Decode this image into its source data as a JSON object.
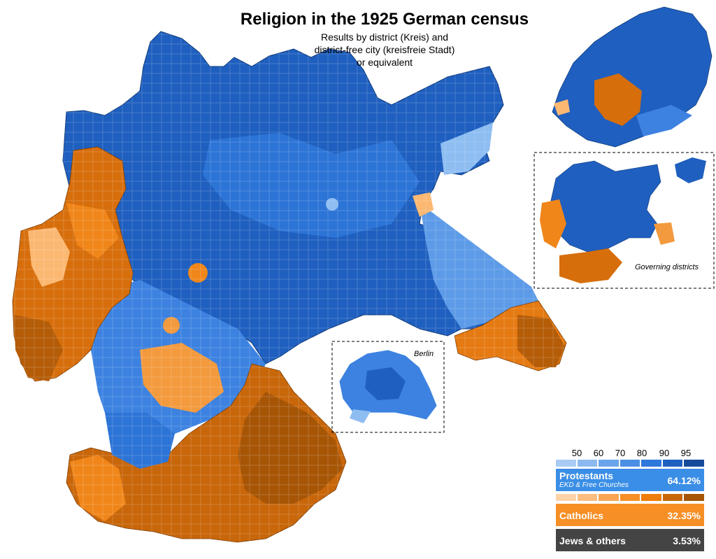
{
  "title": "Religion in the 1925 German census",
  "subtitle": {
    "line1": "Results by district (Kreis) and",
    "line2": "district-free city (kreisfreie Stadt)",
    "line3": "or equivalent"
  },
  "insets": {
    "berlin": "Berlin",
    "governing_districts": "Governing districts"
  },
  "legend": {
    "ticks": [
      "50",
      "60",
      "70",
      "80",
      "90",
      "95"
    ],
    "protestant_scale": [
      "#a8cbf4",
      "#8cbaf0",
      "#6aa5ec",
      "#4a8fe4",
      "#2f78dc",
      "#1f5fbf",
      "#154a9a"
    ],
    "catholic_scale": [
      "#fdd3a8",
      "#fbbd80",
      "#f9a654",
      "#f68f26",
      "#ee7d0a",
      "#c86708",
      "#a65505"
    ],
    "protestants": {
      "label": "Protestants",
      "sublabel": "EKD & Free Churches",
      "percent": "64.12%",
      "color": "#3a8ee6"
    },
    "catholics": {
      "label": "Catholics",
      "percent": "32.35%",
      "color": "#f68f26"
    },
    "others": {
      "label": "Jews & others",
      "percent": "3.53%",
      "color": "#444444"
    }
  },
  "colors": {
    "protestant_dark": "#17509f",
    "protestant_mid": "#2c74d6",
    "protestant_light": "#8ebdf2",
    "catholic_dark": "#b45c07",
    "catholic_mid": "#f0861a",
    "catholic_light": "#fbb872"
  }
}
